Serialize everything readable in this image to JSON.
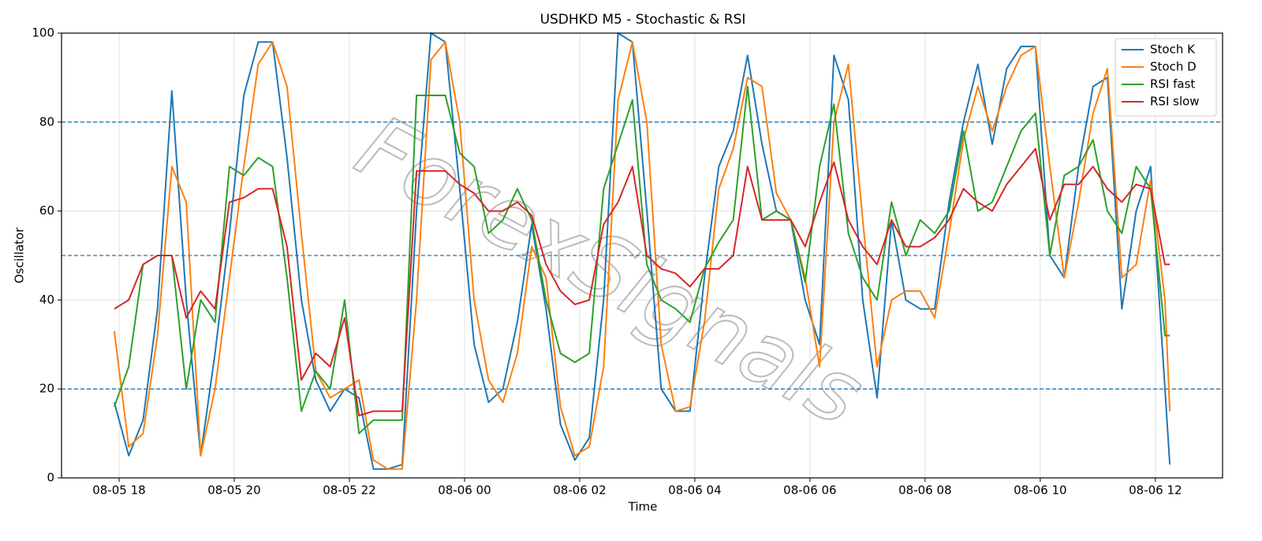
{
  "chart_data": {
    "type": "line",
    "title": "USDHKD M5 - Stochastic & RSI",
    "x_label": "Time",
    "y_label": "Oscillator",
    "watermark": "ForexSignals",
    "x": [
      "08-05 17:55",
      "08-05 18:10",
      "08-05 18:25",
      "08-05 18:40",
      "08-05 18:55",
      "08-05 19:10",
      "08-05 19:25",
      "08-05 19:40",
      "08-05 19:55",
      "08-05 20:10",
      "08-05 20:25",
      "08-05 20:40",
      "08-05 20:55",
      "08-05 21:10",
      "08-05 21:25",
      "08-05 21:40",
      "08-05 21:55",
      "08-05 22:10",
      "08-05 22:25",
      "08-05 22:40",
      "08-05 22:55",
      "08-05 23:10",
      "08-05 23:25",
      "08-05 23:40",
      "08-05 23:55",
      "08-06 00:10",
      "08-06 00:25",
      "08-06 00:40",
      "08-06 00:55",
      "08-06 01:10",
      "08-06 01:25",
      "08-06 01:40",
      "08-06 01:55",
      "08-06 02:10",
      "08-06 02:25",
      "08-06 02:40",
      "08-06 02:55",
      "08-06 03:10",
      "08-06 03:25",
      "08-06 03:40",
      "08-06 03:55",
      "08-06 04:10",
      "08-06 04:25",
      "08-06 04:40",
      "08-06 04:55",
      "08-06 05:10",
      "08-06 05:25",
      "08-06 05:40",
      "08-06 05:55",
      "08-06 06:10",
      "08-06 06:25",
      "08-06 06:40",
      "08-06 06:55",
      "08-06 07:10",
      "08-06 07:25",
      "08-06 07:40",
      "08-06 07:55",
      "08-06 08:10",
      "08-06 08:25",
      "08-06 08:40",
      "08-06 08:55",
      "08-06 09:10",
      "08-06 09:25",
      "08-06 09:40",
      "08-06 09:55",
      "08-06 10:10",
      "08-06 10:25",
      "08-06 10:40",
      "08-06 10:55",
      "08-06 11:10",
      "08-06 11:25",
      "08-06 11:40",
      "08-06 11:55",
      "08-06 12:10",
      "08-06 12:15"
    ],
    "series": [
      {
        "name": "Stoch K",
        "color": "#1f77b4",
        "values": [
          17,
          5,
          13,
          38,
          87,
          40,
          5,
          28,
          55,
          86,
          98,
          98,
          72,
          40,
          22,
          15,
          20,
          18,
          2,
          2,
          3,
          60,
          100,
          98,
          65,
          30,
          17,
          20,
          35,
          57,
          38,
          12,
          4,
          9,
          40,
          100,
          98,
          60,
          20,
          15,
          15,
          45,
          70,
          78,
          95,
          75,
          60,
          58,
          40,
          30,
          95,
          85,
          40,
          18,
          58,
          40,
          38,
          38,
          62,
          80,
          93,
          75,
          92,
          97,
          97,
          50,
          45,
          70,
          88,
          90,
          38,
          60,
          70,
          20,
          3
        ]
      },
      {
        "name": "Stoch D",
        "color": "#ff7f0e",
        "values": [
          33,
          7,
          10,
          32,
          70,
          62,
          5,
          20,
          45,
          70,
          93,
          98,
          88,
          55,
          24,
          18,
          20,
          22,
          4,
          2,
          2,
          40,
          94,
          98,
          80,
          40,
          22,
          17,
          28,
          52,
          45,
          16,
          5,
          7,
          25,
          85,
          98,
          80,
          30,
          15,
          16,
          35,
          65,
          74,
          90,
          88,
          64,
          58,
          45,
          25,
          80,
          93,
          58,
          25,
          40,
          42,
          42,
          36,
          55,
          76,
          88,
          78,
          88,
          95,
          97,
          70,
          45,
          62,
          82,
          92,
          45,
          48,
          67,
          40,
          15
        ]
      },
      {
        "name": "RSI fast",
        "color": "#2ca02c",
        "values": [
          16,
          25,
          48,
          50,
          50,
          20,
          40,
          35,
          70,
          68,
          72,
          70,
          45,
          15,
          24,
          20,
          40,
          10,
          13,
          13,
          13,
          86,
          86,
          86,
          73,
          70,
          55,
          58,
          65,
          58,
          40,
          28,
          26,
          28,
          65,
          75,
          85,
          48,
          40,
          38,
          35,
          47,
          53,
          58,
          88,
          58,
          60,
          58,
          44,
          70,
          84,
          55,
          45,
          40,
          62,
          50,
          58,
          55,
          60,
          78,
          60,
          62,
          70,
          78,
          82,
          50,
          68,
          70,
          76,
          60,
          55,
          70,
          65,
          32,
          32
        ]
      },
      {
        "name": "RSI slow",
        "color": "#d62728",
        "values": [
          38,
          40,
          48,
          50,
          50,
          36,
          42,
          38,
          62,
          63,
          65,
          65,
          52,
          22,
          28,
          25,
          36,
          14,
          15,
          15,
          15,
          69,
          69,
          69,
          66,
          64,
          60,
          60,
          62,
          59,
          48,
          42,
          39,
          40,
          57,
          62,
          70,
          50,
          47,
          46,
          43,
          47,
          47,
          50,
          70,
          58,
          58,
          58,
          52,
          62,
          71,
          58,
          52,
          48,
          58,
          52,
          52,
          54,
          58,
          65,
          62,
          60,
          66,
          70,
          74,
          58,
          66,
          66,
          70,
          65,
          62,
          66,
          65,
          48,
          48
        ]
      }
    ],
    "xlim": [
      "08-05 17:00",
      "08-06 13:10"
    ],
    "xticks": [
      "08-05 18",
      "08-05 20",
      "08-05 22",
      "08-06 00",
      "08-06 02",
      "08-06 04",
      "08-06 06",
      "08-06 08",
      "08-06 10",
      "08-06 12"
    ],
    "ylim": [
      0,
      100
    ],
    "yticks": [
      0,
      20,
      40,
      60,
      80,
      100
    ],
    "hlines": [
      20,
      50,
      80
    ],
    "hline_color": "#1f77b4",
    "grid": true,
    "legend": "upper right"
  }
}
